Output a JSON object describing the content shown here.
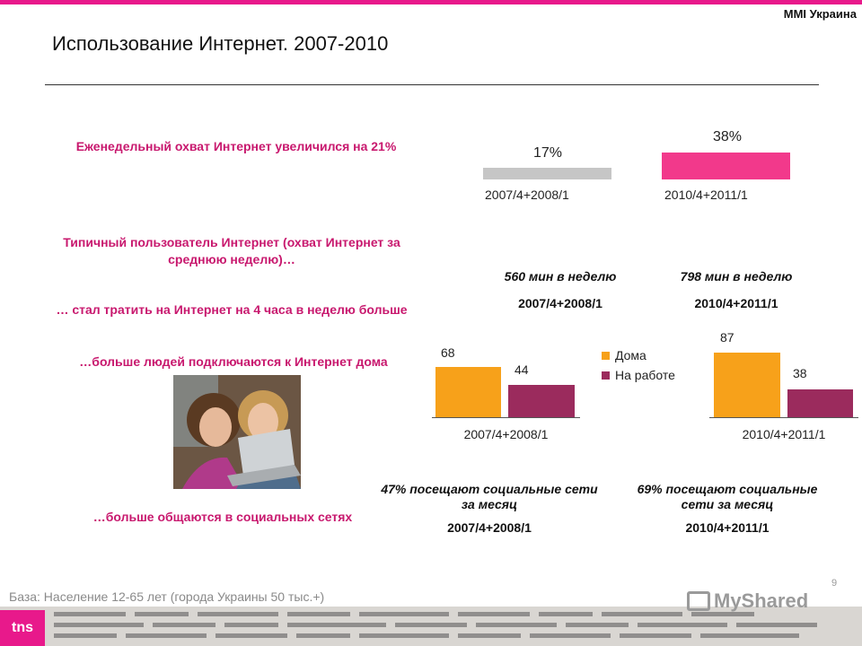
{
  "header": {
    "brand": "MMI Украина",
    "title": "Использование Интернет. 2007-2010"
  },
  "labels": {
    "reach": "Еженедельный охват Интернет увеличился на 21%",
    "typical": "Типичный пользователь Интернет (охват Интернет за среднюю неделю)…",
    "hours": "… стал тратить на Интернет на 4 часа в неделю больше",
    "home": "…больше людей подключаются к Интернет дома",
    "social": "…больше общаются в социальных сетях"
  },
  "chart_data": [
    {
      "type": "bar",
      "categories": [
        "2007/4+2008/1",
        "2010/4+2011/1"
      ],
      "values": [
        17,
        38
      ],
      "value_labels": [
        "17%",
        "38%"
      ],
      "colors": [
        "#c6c6c6",
        "#f2398b"
      ]
    },
    {
      "type": "bar",
      "categories": [
        "2007/4+2008/1",
        "2010/4+2011/1"
      ],
      "series": [
        {
          "name": "Дома",
          "values": [
            68,
            87
          ],
          "color": "#f7a11a"
        },
        {
          "name": "На работе",
          "values": [
            44,
            38
          ],
          "color": "#9b2b5d"
        }
      ],
      "legend": "center"
    }
  ],
  "time": [
    {
      "value": "560 мин в неделю",
      "period": "2007/4+2008/1"
    },
    {
      "value": "798 мин в неделю",
      "period": "2010/4+2011/1"
    }
  ],
  "social": [
    {
      "text": "47% посещают социальные сети за месяц",
      "period": "2007/4+2008/1"
    },
    {
      "text": "69% посещают социальные сети за месяц",
      "period": "2010/4+2011/1"
    }
  ],
  "footer": {
    "page": "9",
    "base": "База: Население 12-65 лет (города Украины 50 тыс.+)",
    "logo": "tns",
    "watermark": "MyShared"
  }
}
